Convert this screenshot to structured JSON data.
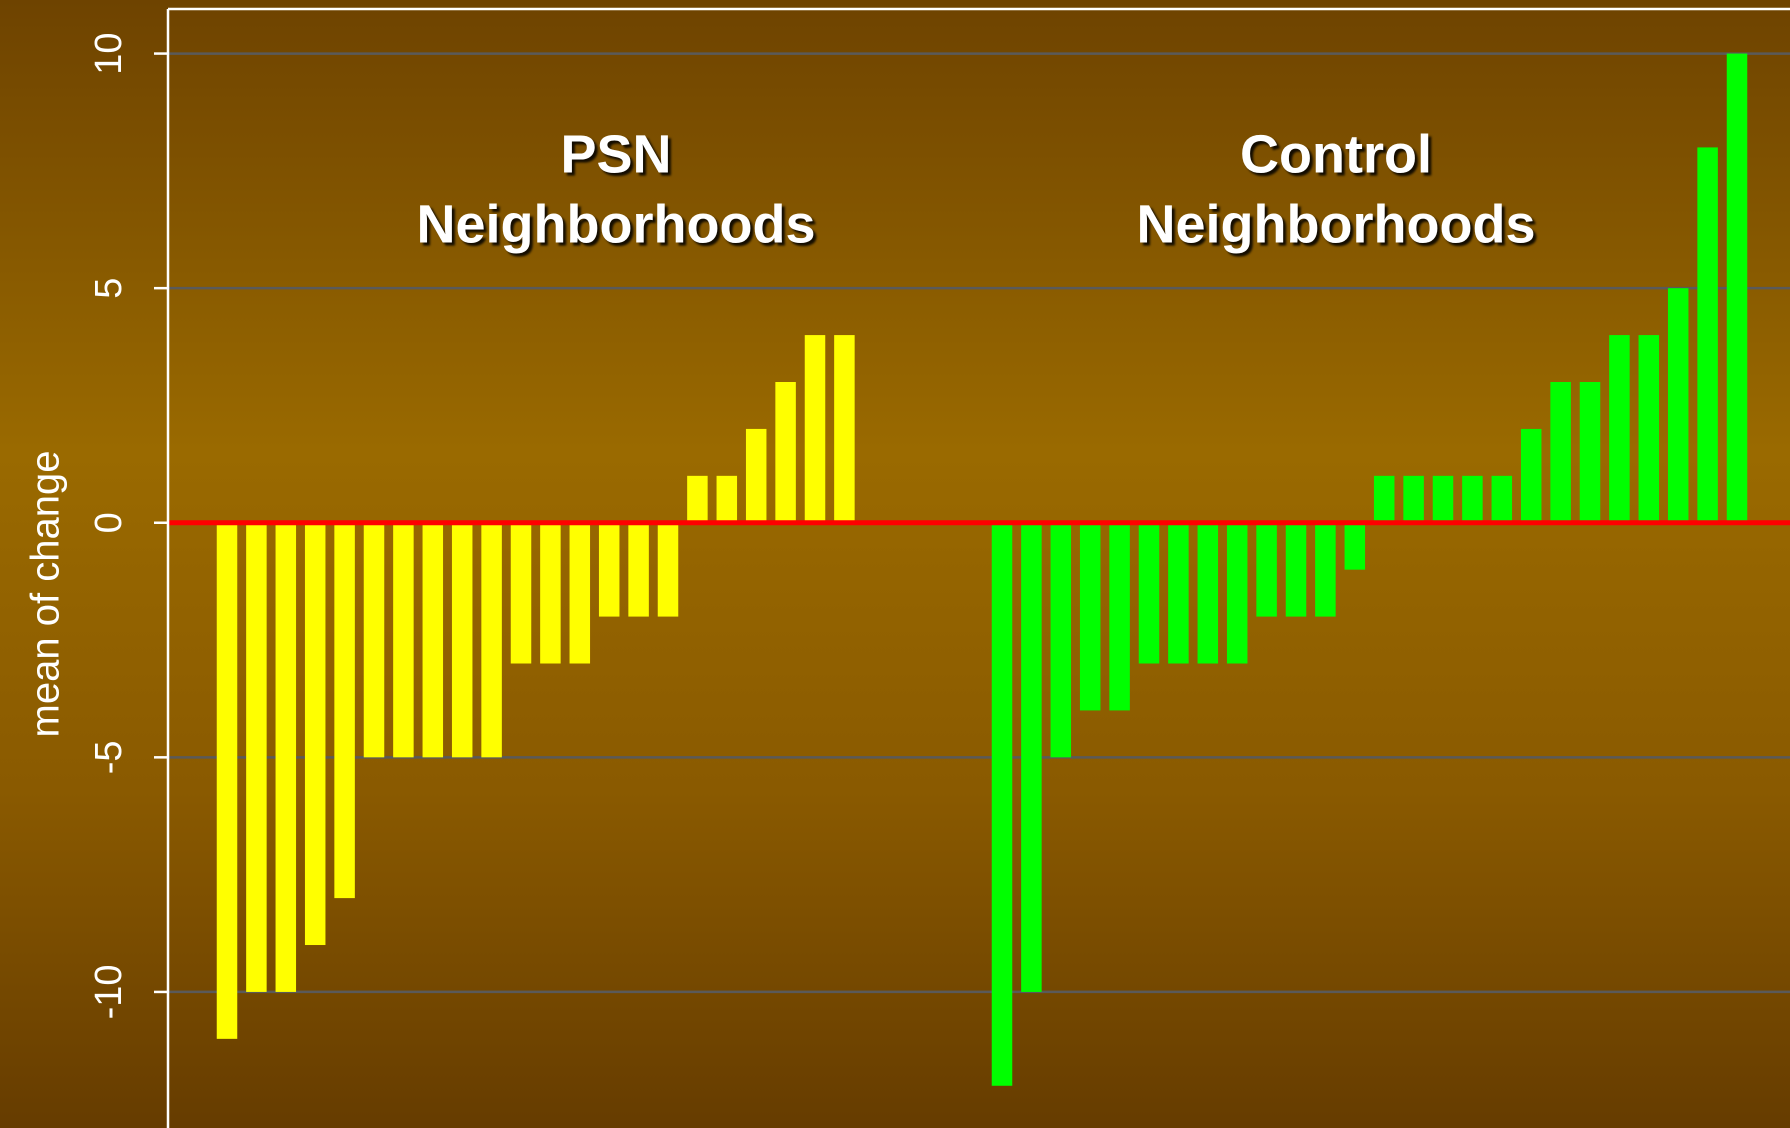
{
  "chart_data": {
    "type": "bar",
    "ylabel": "mean of change",
    "annotations": [
      {
        "lines": [
          "PSN",
          "Neighborhoods"
        ]
      },
      {
        "lines": [
          "Control",
          "Neighborhoods"
        ]
      }
    ],
    "series": [
      {
        "color": "#ffff00",
        "values": [
          -11,
          -10,
          -10,
          -9,
          -8,
          -5,
          -5,
          -5,
          -5,
          -5,
          -3,
          -3,
          -3,
          -2,
          -2,
          -2,
          1,
          1,
          2,
          3,
          4,
          4
        ]
      },
      {
        "color": "#00ff00",
        "values": [
          -12,
          -10,
          -5,
          -4,
          -4,
          -3,
          -3,
          -3,
          -3,
          -2,
          -2,
          -2,
          -1,
          1,
          1,
          1,
          1,
          1,
          2,
          3,
          3,
          4,
          4,
          5,
          8,
          10
        ]
      }
    ],
    "ylim": [
      -12.9,
      10.95
    ],
    "yticks": [
      -10,
      -5,
      0,
      5,
      10
    ],
    "grid": true,
    "zero_line_color": "#ff0000"
  }
}
